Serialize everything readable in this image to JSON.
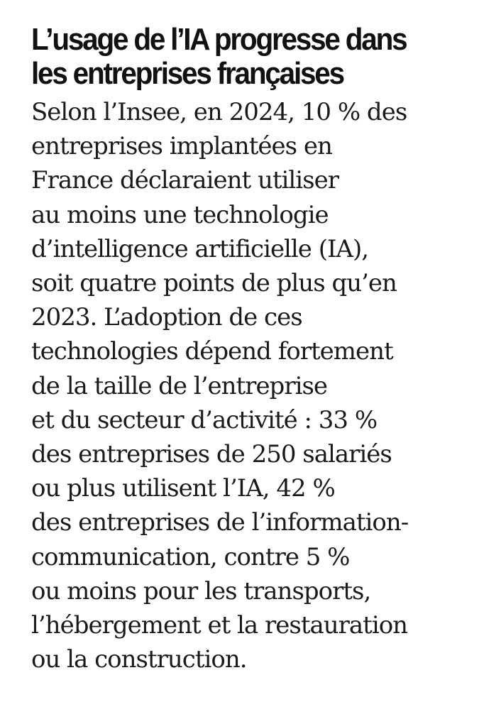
{
  "headline": {
    "lines": [
      "L’usage de l’IA progresse dans",
      "les entreprises françaises"
    ]
  },
  "body": {
    "lines": [
      "Selon l’Insee, en 2024, 10 % des",
      "entreprises implantées en",
      "France déclaraient utiliser",
      "au moins une technologie",
      "d’intelligence artificielle (IA),",
      "soit quatre points de plus qu’en",
      "2023. L’adoption de ces",
      "technologies dépend fortement",
      "de la taille de l’entreprise",
      "et du secteur d’activité : 33 %",
      "des entreprises de 250 salariés",
      "ou plus utilisent l’IA, 42 %",
      "des entreprises de l’information-",
      "communication, contre 5 %",
      "ou moins pour les transports,",
      "l’hébergement et la restauration",
      "ou la construction."
    ]
  }
}
